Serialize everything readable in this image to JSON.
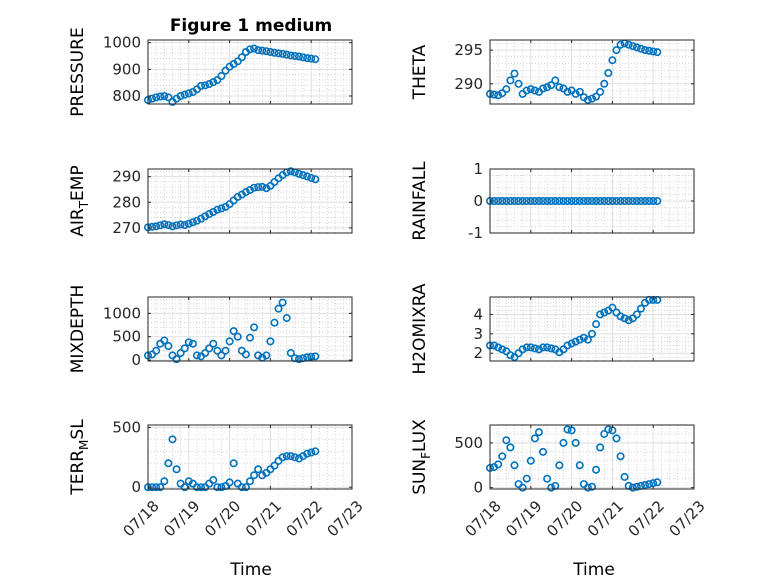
{
  "figure_title": "Figure 1 medium",
  "colors": {
    "marker": "#0072BD",
    "axis": "#262626",
    "grid": "#dfdfdf",
    "minor_grid": "#bdbdbd",
    "background": "#ffffff"
  },
  "chart_data": [
    {
      "id": "pressure",
      "type": "scatter",
      "ylabel": "PRESSURE",
      "title": "Figure 1 medium",
      "ylim": [
        770,
        1010
      ],
      "yticks": [
        800,
        900,
        1000
      ],
      "ytick_labels": [
        "800",
        "900",
        "1000"
      ],
      "xlim": [
        "07/18",
        "07/23"
      ],
      "xtick_labels": [
        "07/18",
        "07/19",
        "07/20",
        "07/21",
        "07/22",
        "07/23"
      ],
      "show_xtick_labels": false,
      "grid": true,
      "minor_grid": true,
      "x": [
        0,
        0.1,
        0.2,
        0.3,
        0.4,
        0.5,
        0.6,
        0.7,
        0.8,
        0.9,
        1,
        1.1,
        1.2,
        1.3,
        1.4,
        1.5,
        1.6,
        1.7,
        1.8,
        1.9,
        2,
        2.1,
        2.2,
        2.3,
        2.4,
        2.5,
        2.6,
        2.7,
        2.8,
        2.9,
        3,
        3.1,
        3.2,
        3.3,
        3.4,
        3.5,
        3.6,
        3.7,
        3.8,
        3.9,
        4,
        4.1
      ],
      "y": [
        785,
        790,
        795,
        798,
        800,
        795,
        778,
        790,
        800,
        805,
        810,
        815,
        825,
        838,
        840,
        845,
        852,
        860,
        875,
        895,
        910,
        920,
        930,
        945,
        965,
        975,
        978,
        972,
        970,
        968,
        965,
        962,
        960,
        958,
        955,
        952,
        950,
        948,
        945,
        942,
        940,
        938
      ]
    },
    {
      "id": "theta",
      "type": "scatter",
      "ylabel": "THETA",
      "ylim": [
        287,
        296.5
      ],
      "yticks": [
        290,
        295
      ],
      "ytick_labels": [
        "290",
        "295"
      ],
      "xlim": [
        "07/18",
        "07/23"
      ],
      "xtick_labels": [
        "07/18",
        "07/19",
        "07/20",
        "07/21",
        "07/22",
        "07/23"
      ],
      "show_xtick_labels": false,
      "grid": true,
      "minor_grid": true,
      "x": [
        0,
        0.1,
        0.2,
        0.3,
        0.4,
        0.5,
        0.6,
        0.7,
        0.8,
        0.9,
        1,
        1.1,
        1.2,
        1.3,
        1.4,
        1.5,
        1.6,
        1.7,
        1.8,
        1.9,
        2,
        2.1,
        2.2,
        2.3,
        2.4,
        2.5,
        2.6,
        2.7,
        2.8,
        2.9,
        3,
        3.1,
        3.2,
        3.3,
        3.4,
        3.5,
        3.6,
        3.7,
        3.8,
        3.9,
        4,
        4.1
      ],
      "y": [
        288.5,
        288.4,
        288.3,
        288.6,
        289.2,
        290.5,
        291.5,
        290,
        288.5,
        289,
        289.2,
        289.0,
        288.8,
        289.3,
        289.5,
        289.8,
        290.5,
        289.5,
        289.3,
        288.8,
        289.0,
        288.5,
        288.8,
        288.0,
        287.6,
        287.8,
        288.1,
        288.8,
        290,
        291.6,
        293.5,
        295,
        295.8,
        296,
        295.8,
        295.6,
        295.4,
        295.2,
        295.0,
        294.9,
        294.8,
        294.7
      ]
    },
    {
      "id": "air_temp",
      "type": "scatter",
      "ylabel": "AIR_TEMP",
      "ylim": [
        268,
        293
      ],
      "yticks": [
        270,
        280,
        290
      ],
      "ytick_labels": [
        "270",
        "280",
        "290"
      ],
      "xlim": [
        "07/18",
        "07/23"
      ],
      "xtick_labels": [
        "07/18",
        "07/19",
        "07/20",
        "07/21",
        "07/22",
        "07/23"
      ],
      "show_xtick_labels": false,
      "grid": true,
      "minor_grid": true,
      "x": [
        0,
        0.1,
        0.2,
        0.3,
        0.4,
        0.5,
        0.6,
        0.7,
        0.8,
        0.9,
        1,
        1.1,
        1.2,
        1.3,
        1.4,
        1.5,
        1.6,
        1.7,
        1.8,
        1.9,
        2,
        2.1,
        2.2,
        2.3,
        2.4,
        2.5,
        2.6,
        2.7,
        2.8,
        2.9,
        3,
        3.1,
        3.2,
        3.3,
        3.4,
        3.5,
        3.6,
        3.7,
        3.8,
        3.9,
        4,
        4.1
      ],
      "y": [
        270.2,
        270.4,
        270.6,
        271,
        271.4,
        271.1,
        270.6,
        271.0,
        271.3,
        271.1,
        271.6,
        272.2,
        272.8,
        273.6,
        274.5,
        275.4,
        276.2,
        277.1,
        277.6,
        278.2,
        279.3,
        280.7,
        282.1,
        283.0,
        284.0,
        284.8,
        285.7,
        285.9,
        286.0,
        285.5,
        286.4,
        287.9,
        289.4,
        290.6,
        291.7,
        292.1,
        291.7,
        291.1,
        290.6,
        290.1,
        289.5,
        289.0
      ]
    },
    {
      "id": "rainfall",
      "type": "scatter",
      "ylabel": "RAINFALL",
      "ylim": [
        -1,
        1
      ],
      "yticks": [
        -1,
        0,
        1
      ],
      "ytick_labels": [
        "-1",
        "0",
        "1"
      ],
      "xlim": [
        "07/18",
        "07/23"
      ],
      "xtick_labels": [
        "07/18",
        "07/19",
        "07/20",
        "07/21",
        "07/22",
        "07/23"
      ],
      "show_xtick_labels": false,
      "grid": true,
      "minor_grid": true,
      "x": [
        0,
        0.1,
        0.2,
        0.3,
        0.4,
        0.5,
        0.6,
        0.7,
        0.8,
        0.9,
        1,
        1.1,
        1.2,
        1.3,
        1.4,
        1.5,
        1.6,
        1.7,
        1.8,
        1.9,
        2,
        2.1,
        2.2,
        2.3,
        2.4,
        2.5,
        2.6,
        2.7,
        2.8,
        2.9,
        3,
        3.1,
        3.2,
        3.3,
        3.4,
        3.5,
        3.6,
        3.7,
        3.8,
        3.9,
        4,
        4.1
      ],
      "y": [
        0,
        0,
        0,
        0,
        0,
        0,
        0,
        0,
        0,
        0,
        0,
        0,
        0,
        0,
        0,
        0,
        0,
        0,
        0,
        0,
        0,
        0,
        0,
        0,
        0,
        0,
        0,
        0,
        0,
        0,
        0,
        0,
        0,
        0,
        0,
        0,
        0,
        0,
        0,
        0,
        0,
        0
      ]
    },
    {
      "id": "mixdepth",
      "type": "scatter",
      "ylabel": "MIXDEPTH",
      "ylim": [
        -20,
        1350
      ],
      "yticks": [
        0,
        500,
        1000
      ],
      "ytick_labels": [
        "0",
        "500",
        "1000"
      ],
      "xlim": [
        "07/18",
        "07/23"
      ],
      "xtick_labels": [
        "07/18",
        "07/19",
        "07/20",
        "07/21",
        "07/22",
        "07/23"
      ],
      "show_xtick_labels": false,
      "grid": true,
      "minor_grid": true,
      "x": [
        0,
        0.1,
        0.2,
        0.3,
        0.4,
        0.5,
        0.6,
        0.7,
        0.8,
        0.9,
        1,
        1.1,
        1.2,
        1.3,
        1.4,
        1.5,
        1.6,
        1.7,
        1.8,
        1.9,
        2,
        2.1,
        2.2,
        2.3,
        2.4,
        2.5,
        2.6,
        2.7,
        2.8,
        2.9,
        3,
        3.1,
        3.2,
        3.3,
        3.4,
        3.5,
        3.6,
        3.7,
        3.8,
        3.9,
        4,
        4.1
      ],
      "y": [
        100,
        120,
        200,
        350,
        420,
        300,
        100,
        20,
        150,
        250,
        380,
        350,
        100,
        80,
        150,
        250,
        350,
        200,
        100,
        200,
        400,
        620,
        500,
        200,
        120,
        480,
        700,
        100,
        50,
        100,
        400,
        800,
        1100,
        1230,
        900,
        150,
        40,
        20,
        40,
        60,
        70,
        80
      ]
    },
    {
      "id": "h2omixra",
      "type": "scatter",
      "ylabel": "H2OMIXRA",
      "ylim": [
        1.6,
        4.9
      ],
      "yticks": [
        2,
        3,
        4
      ],
      "ytick_labels": [
        "2",
        "3",
        "4"
      ],
      "xlim": [
        "07/18",
        "07/23"
      ],
      "xtick_labels": [
        "07/18",
        "07/19",
        "07/20",
        "07/21",
        "07/22",
        "07/23"
      ],
      "show_xtick_labels": false,
      "grid": true,
      "minor_grid": true,
      "x": [
        0,
        0.1,
        0.2,
        0.3,
        0.4,
        0.5,
        0.6,
        0.7,
        0.8,
        0.9,
        1,
        1.1,
        1.2,
        1.3,
        1.4,
        1.5,
        1.6,
        1.7,
        1.8,
        1.9,
        2,
        2.1,
        2.2,
        2.3,
        2.4,
        2.5,
        2.6,
        2.7,
        2.8,
        2.9,
        3,
        3.1,
        3.2,
        3.3,
        3.4,
        3.5,
        3.6,
        3.7,
        3.8,
        3.9,
        4,
        4.1
      ],
      "y": [
        2.4,
        2.4,
        2.3,
        2.2,
        2.1,
        1.9,
        1.8,
        2.0,
        2.2,
        2.3,
        2.3,
        2.25,
        2.2,
        2.3,
        2.3,
        2.25,
        2.2,
        2.05,
        2.2,
        2.4,
        2.5,
        2.6,
        2.7,
        2.8,
        2.7,
        3.0,
        3.5,
        4.0,
        4.1,
        4.2,
        4.35,
        4.1,
        3.9,
        3.8,
        3.7,
        3.8,
        4.0,
        4.3,
        4.6,
        4.75,
        4.75,
        4.75
      ]
    },
    {
      "id": "terr_msl",
      "type": "scatter",
      "ylabel": "TERR_MSL",
      "ylim": [
        -15,
        520
      ],
      "yticks": [
        0,
        500
      ],
      "ytick_labels": [
        "0",
        "500"
      ],
      "xlim": [
        "07/18",
        "07/23"
      ],
      "xtick_labels": [
        "07/18",
        "07/19",
        "07/20",
        "07/21",
        "07/22",
        "07/23"
      ],
      "show_xtick_labels": true,
      "grid": true,
      "minor_grid": true,
      "x": [
        0,
        0.1,
        0.2,
        0.3,
        0.4,
        0.5,
        0.6,
        0.7,
        0.8,
        0.9,
        1,
        1.1,
        1.2,
        1.3,
        1.4,
        1.5,
        1.6,
        1.7,
        1.8,
        1.9,
        2,
        2.1,
        2.2,
        2.3,
        2.4,
        2.5,
        2.6,
        2.7,
        2.8,
        2.9,
        3,
        3.1,
        3.2,
        3.3,
        3.4,
        3.5,
        3.6,
        3.7,
        3.8,
        3.9,
        4,
        4.1
      ],
      "y": [
        0,
        0,
        0,
        0,
        50,
        200,
        400,
        150,
        30,
        0,
        50,
        30,
        0,
        0,
        0,
        30,
        60,
        0,
        0,
        10,
        40,
        200,
        30,
        0,
        0,
        50,
        100,
        150,
        100,
        120,
        150,
        180,
        220,
        250,
        260,
        260,
        250,
        240,
        260,
        280,
        290,
        300
      ]
    },
    {
      "id": "sun_flux",
      "type": "scatter",
      "ylabel": "SUN_FLUX",
      "ylim": [
        -15,
        700
      ],
      "yticks": [
        0,
        500
      ],
      "ytick_labels": [
        "0",
        "500"
      ],
      "xlim": [
        "07/18",
        "07/23"
      ],
      "xtick_labels": [
        "07/18",
        "07/19",
        "07/20",
        "07/21",
        "07/22",
        "07/23"
      ],
      "show_xtick_labels": true,
      "grid": true,
      "minor_grid": true,
      "x": [
        0,
        0.1,
        0.2,
        0.3,
        0.4,
        0.5,
        0.6,
        0.7,
        0.8,
        0.9,
        1,
        1.1,
        1.2,
        1.3,
        1.4,
        1.5,
        1.6,
        1.7,
        1.8,
        1.9,
        2,
        2.1,
        2.2,
        2.3,
        2.4,
        2.5,
        2.6,
        2.7,
        2.8,
        2.9,
        3,
        3.1,
        3.2,
        3.3,
        3.4,
        3.5,
        3.6,
        3.7,
        3.8,
        3.9,
        4,
        4.1
      ],
      "y": [
        220,
        230,
        260,
        350,
        530,
        450,
        250,
        40,
        0,
        100,
        300,
        550,
        620,
        400,
        100,
        0,
        20,
        250,
        500,
        650,
        640,
        500,
        250,
        40,
        0,
        10,
        200,
        450,
        600,
        650,
        640,
        550,
        350,
        120,
        20,
        0,
        10,
        20,
        30,
        40,
        50,
        60
      ]
    }
  ],
  "xlabel": "Time"
}
